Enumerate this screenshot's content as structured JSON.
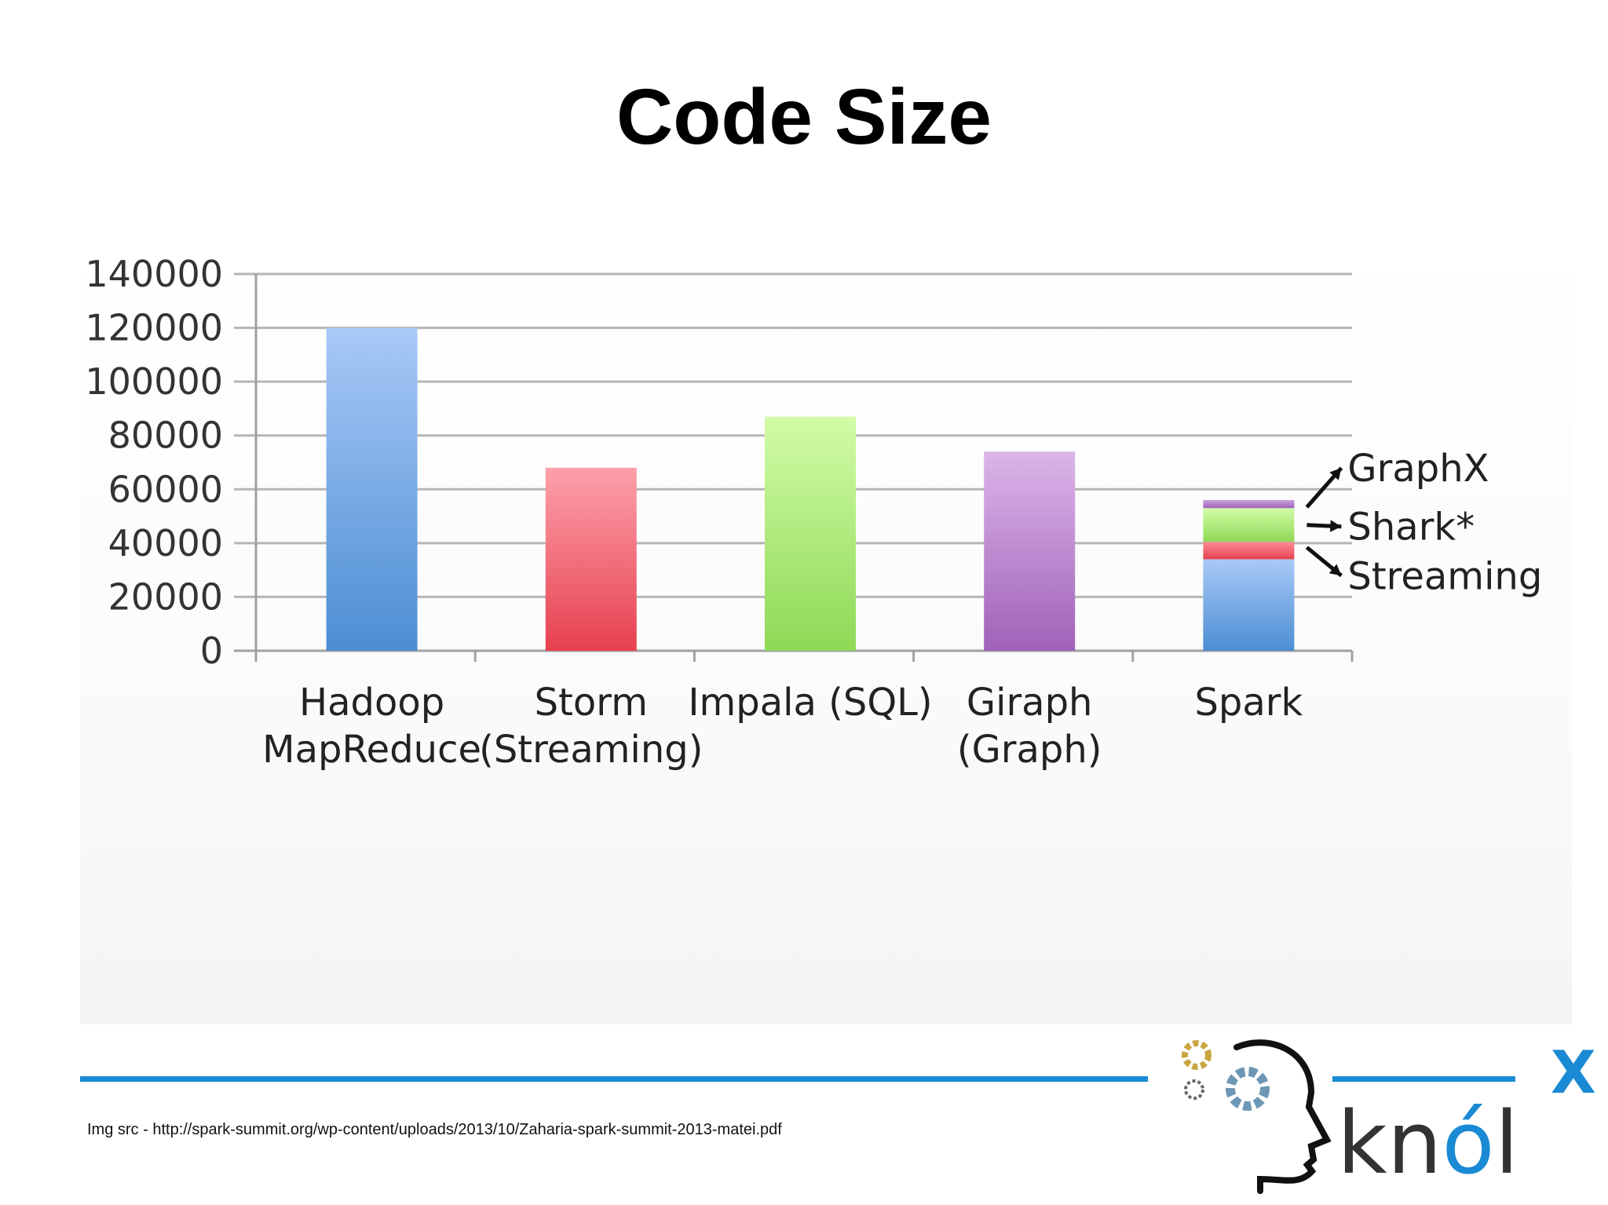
{
  "slide": {
    "title": "Code Size",
    "source": "Img src - http://spark-summit.org/wp-content/uploads/2013/10/Zaharia-spark-summit-2013-matei.pdf",
    "logo_text": "knólx",
    "logo_superscript": "X",
    "accent": "#1a8ad4"
  },
  "chart_data": {
    "type": "bar",
    "title": "",
    "xlabel": "",
    "ylabel": "",
    "ylim": [
      0,
      140000
    ],
    "yticks": [
      0,
      20000,
      40000,
      60000,
      80000,
      100000,
      120000,
      140000
    ],
    "grid": true,
    "categories": [
      [
        "Hadoop",
        "MapReduce"
      ],
      [
        "Storm",
        "(Streaming)"
      ],
      [
        "Impala (SQL)"
      ],
      [
        "Giraph",
        "(Graph)"
      ],
      [
        "Spark"
      ]
    ],
    "bars": [
      {
        "segments": [
          {
            "value": 120000,
            "color_top": "#a9c9f7",
            "color_bottom": "#4c8ed3"
          }
        ]
      },
      {
        "segments": [
          {
            "value": 68000,
            "color_top": "#fca1ab",
            "color_bottom": "#e7404f"
          }
        ]
      },
      {
        "segments": [
          {
            "value": 87000,
            "color_top": "#d2fca7",
            "color_bottom": "#8ed956"
          }
        ]
      },
      {
        "segments": [
          {
            "value": 74000,
            "color_top": "#dcb5ea",
            "color_bottom": "#a062b8"
          }
        ]
      },
      {
        "segments": [
          {
            "name": "",
            "value": 34000,
            "color_top": "#a9c9f7",
            "color_bottom": "#4c8ed3"
          },
          {
            "name": "Streaming",
            "value": 6500,
            "color_top": "#fc8d98",
            "color_bottom": "#e7404f"
          },
          {
            "name": "Shark*",
            "value": 12500,
            "color_top": "#d2fca7",
            "color_bottom": "#8ed956"
          },
          {
            "name": "GraphX",
            "value": 3000,
            "color_top": "#c9a0dd",
            "color_bottom": "#a062b8"
          }
        ]
      }
    ],
    "annotations": [
      {
        "text": "GraphX",
        "target_bar": 4,
        "target_segment": 3,
        "arrow": "up-right"
      },
      {
        "text": "Shark*",
        "target_bar": 4,
        "target_segment": 2,
        "arrow": "right"
      },
      {
        "text": "Streaming",
        "target_bar": 4,
        "target_segment": 1,
        "arrow": "down-right"
      }
    ]
  }
}
